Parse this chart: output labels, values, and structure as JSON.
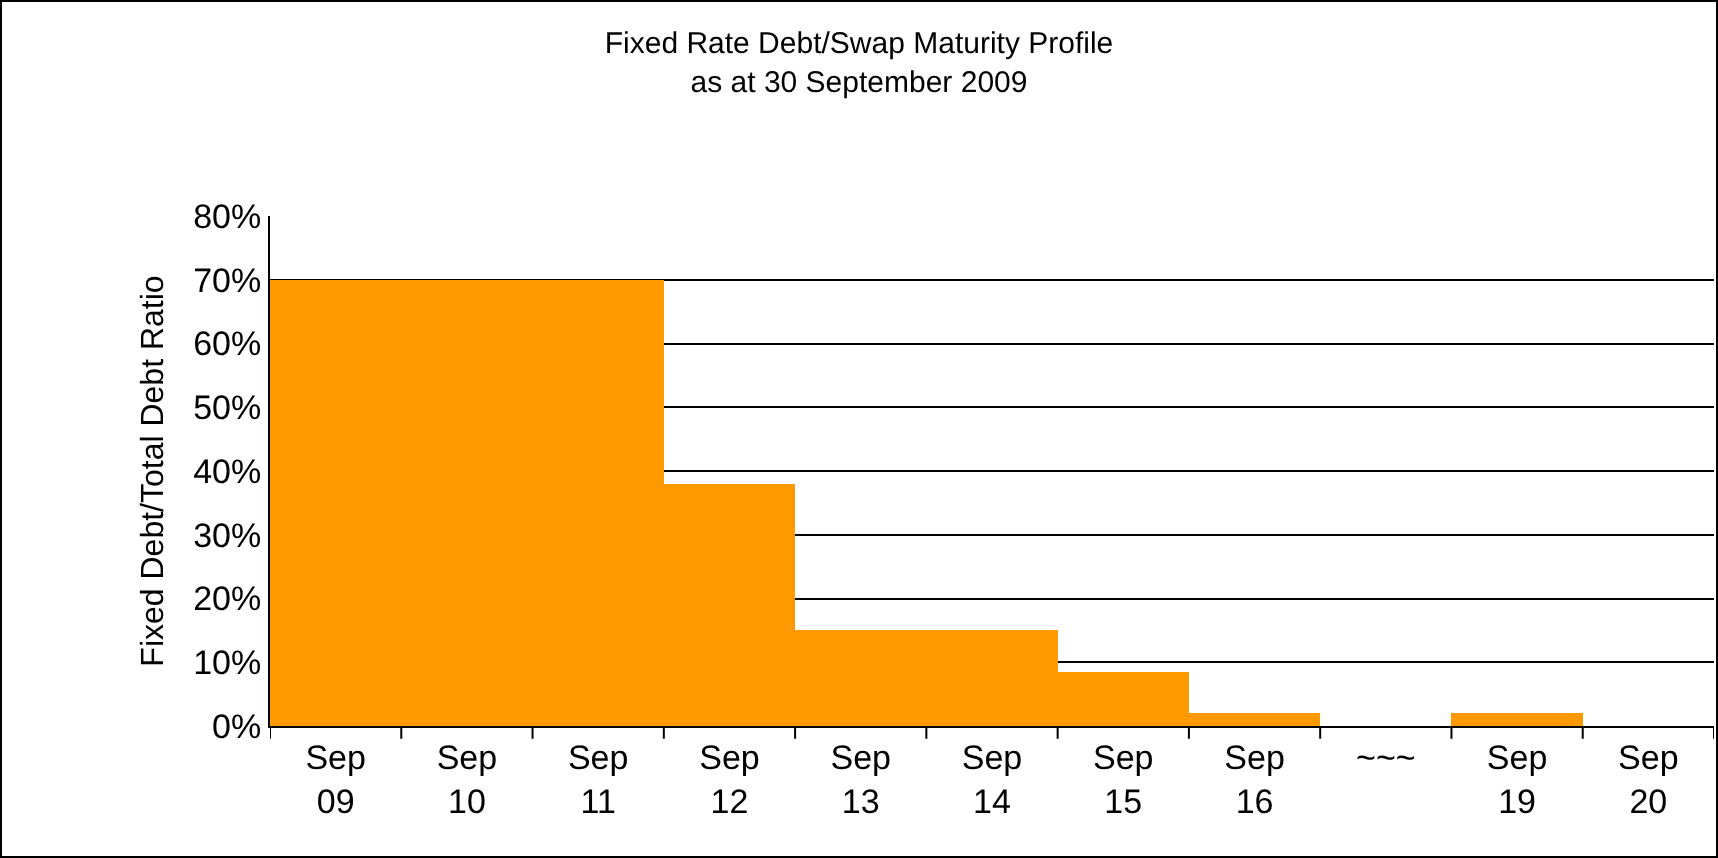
{
  "chart_data": {
    "type": "bar",
    "title": "Fixed Rate Debt/Swap Maturity Profile\nas at 30 September 2009",
    "ylabel": "Fixed Debt/Total Debt Ratio",
    "categories": [
      "Sep 09",
      "Sep 10",
      "Sep 11",
      "Sep 12",
      "Sep 13",
      "Sep 14",
      "Sep 15",
      "Sep 16",
      "~~~",
      "Sep 19",
      "Sep 20"
    ],
    "values": [
      70,
      70,
      70,
      38,
      15,
      15,
      8.5,
      2,
      null,
      2,
      0
    ],
    "color": "#ff9900",
    "ylim": [
      0,
      80
    ],
    "yticks": [
      {
        "value": 0,
        "label": "0%"
      },
      {
        "value": 10,
        "label": "10%"
      },
      {
        "value": 20,
        "label": "20%"
      },
      {
        "value": 30,
        "label": "30%"
      },
      {
        "value": 40,
        "label": "40%"
      },
      {
        "value": 50,
        "label": "50%"
      },
      {
        "value": 60,
        "label": "60%"
      },
      {
        "value": 70,
        "label": "70%"
      },
      {
        "value": 80,
        "label": "80%"
      }
    ],
    "grid": "y",
    "legend": false
  }
}
